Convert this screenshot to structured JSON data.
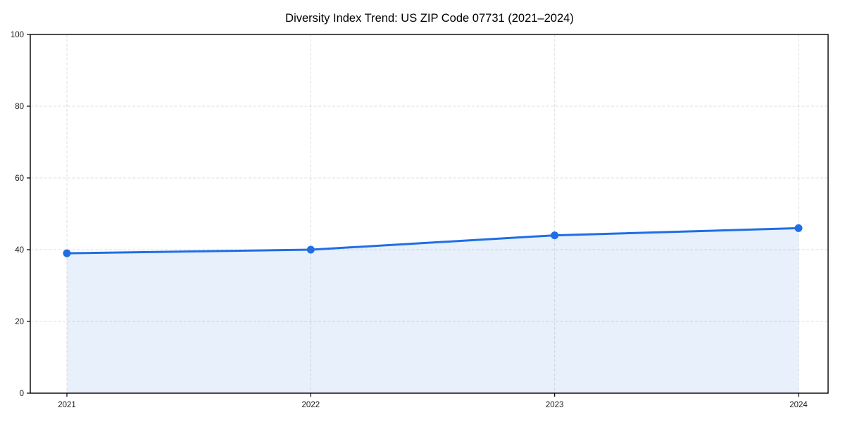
{
  "figure": {
    "background": "#ffffff"
  },
  "chart_data": {
    "type": "area",
    "title": "Diversity Index Trend: US ZIP Code 07731 (2021–2024)",
    "x": [
      2021,
      2022,
      2023,
      2024
    ],
    "xtick_labels": [
      "2021",
      "2022",
      "2023",
      "2024"
    ],
    "series": [
      {
        "name": "Diversity Index",
        "values": [
          39,
          40,
          44,
          46
        ]
      }
    ],
    "xlabel": "",
    "ylabel": "",
    "ylim": [
      0,
      100
    ],
    "yticks": [
      0,
      20,
      40,
      60,
      80,
      100
    ],
    "grid": true,
    "grid_style": "dashed",
    "legend": "none",
    "colors": {
      "line": "#1f6ee5",
      "marker": "#1f6ee5",
      "fill": "rgba(31, 110, 229, 0.10)",
      "grid": "#dedede",
      "spine": "#000000",
      "tick_label": "#1a1a1a",
      "title": "#000000"
    }
  }
}
